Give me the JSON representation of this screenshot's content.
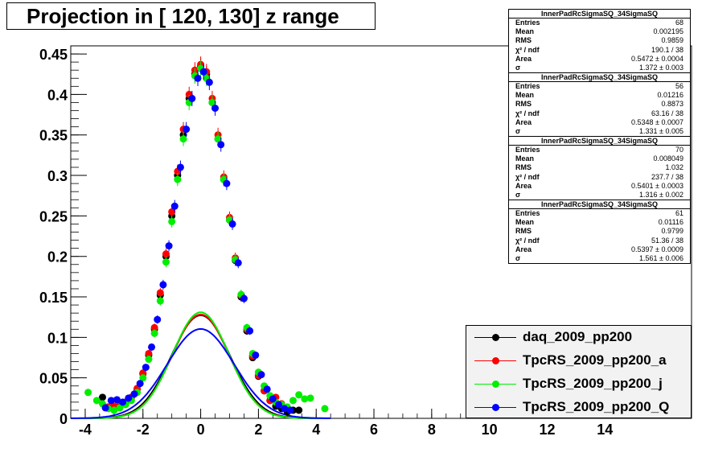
{
  "title": "Projection in [ 120, 130] z range",
  "stats": [
    {
      "name": "InnerPadRcSigmaSQ_34SigmaSQ",
      "rows": [
        {
          "k": "Entries",
          "v": "68"
        },
        {
          "k": "Mean",
          "v": "0.002195"
        },
        {
          "k": "RMS",
          "v": "0.9859"
        },
        {
          "k": "χ² / ndf",
          "v": "190.1 / 38"
        },
        {
          "k": "Area",
          "v": "0.5472 ± 0.0004"
        },
        {
          "k": "σ",
          "v": "1.372 ± 0.003"
        }
      ]
    },
    {
      "name": "InnerPadRcSigmaSQ_34SigmaSQ",
      "rows": [
        {
          "k": "Entries",
          "v": "56"
        },
        {
          "k": "Mean",
          "v": "0.01216"
        },
        {
          "k": "RMS",
          "v": "0.8873"
        },
        {
          "k": "χ² / ndf",
          "v": "63.16 / 38"
        },
        {
          "k": "Area",
          "v": "0.5348 ± 0.0007"
        },
        {
          "k": "σ",
          "v": "1.331 ± 0.005"
        }
      ]
    },
    {
      "name": "InnerPadRcSigmaSQ_34SigmaSQ",
      "rows": [
        {
          "k": "Entries",
          "v": "70"
        },
        {
          "k": "Mean",
          "v": "0.008049"
        },
        {
          "k": "RMS",
          "v": "1.032"
        },
        {
          "k": "χ² / ndf",
          "v": "237.7 / 38"
        },
        {
          "k": "Area",
          "v": "0.5401 ± 0.0003"
        },
        {
          "k": "σ",
          "v": "1.316 ± 0.002"
        }
      ]
    },
    {
      "name": "InnerPadRcSigmaSQ_34SigmaSQ",
      "rows": [
        {
          "k": "Entries",
          "v": "61"
        },
        {
          "k": "Mean",
          "v": "0.01116"
        },
        {
          "k": "RMS",
          "v": "0.9799"
        },
        {
          "k": "χ² / ndf",
          "v": "51.36 / 38"
        },
        {
          "k": "Area",
          "v": "0.5397 ± 0.0009"
        },
        {
          "k": "σ",
          "v": "1.561 ± 0.006"
        }
      ]
    }
  ],
  "legend": [
    {
      "label": "daq_2009_pp200",
      "color": "#000000"
    },
    {
      "label": "TpcRS_2009_pp200_a",
      "color": "#ff0000"
    },
    {
      "label": "TpcRS_2009_pp200_j",
      "color": "#00ee00"
    },
    {
      "label": "TpcRS_2009_pp200_Q",
      "color": "#0000ff"
    }
  ],
  "chart_data": {
    "type": "scatter",
    "title": "Projection in [ 120, 130] z range",
    "xlim": [
      -4.5,
      17
    ],
    "ylim": [
      0,
      0.46
    ],
    "x_ticks": [
      "-4",
      "-2",
      "0",
      "2",
      "4",
      "6",
      "8",
      "10",
      "12",
      "14"
    ],
    "y_ticks": [
      "0",
      "0.05",
      "0.1",
      "0.15",
      "0.2",
      "0.25",
      "0.3",
      "0.35",
      "0.4",
      "0.45"
    ],
    "grid": true,
    "legend_position": "bottom-right",
    "series": [
      {
        "name": "daq_2009_pp200",
        "color": "#000000",
        "x": [
          -3.4,
          -3.2,
          -3.0,
          -2.8,
          -2.6,
          -2.4,
          -2.2,
          -2.0,
          -1.8,
          -1.6,
          -1.4,
          -1.2,
          -1.0,
          -0.8,
          -0.6,
          -0.4,
          -0.2,
          0.0,
          0.2,
          0.4,
          0.6,
          0.8,
          1.0,
          1.2,
          1.4,
          1.6,
          1.8,
          2.0,
          2.2,
          2.4,
          2.6,
          2.8,
          3.0,
          3.2,
          3.4
        ],
        "y": [
          0.026,
          0.014,
          0.012,
          0.015,
          0.019,
          0.026,
          0.036,
          0.055,
          0.078,
          0.11,
          0.152,
          0.2,
          0.25,
          0.3,
          0.35,
          0.395,
          0.425,
          0.435,
          0.425,
          0.39,
          0.345,
          0.295,
          0.245,
          0.195,
          0.15,
          0.108,
          0.075,
          0.052,
          0.034,
          0.022,
          0.015,
          0.012,
          0.008,
          0.01,
          0.01
        ]
      },
      {
        "name": "TpcRS_2009_pp200_a",
        "color": "#ff0000",
        "x": [
          -3.2,
          -3.0,
          -2.8,
          -2.6,
          -2.4,
          -2.2,
          -2.0,
          -1.8,
          -1.6,
          -1.4,
          -1.2,
          -1.0,
          -0.8,
          -0.6,
          -0.4,
          -0.2,
          0.0,
          0.2,
          0.4,
          0.6,
          0.8,
          1.0,
          1.2,
          1.4,
          1.6,
          1.8,
          2.0,
          2.2,
          2.4,
          2.6,
          2.8
        ],
        "y": [
          0.014,
          0.015,
          0.017,
          0.02,
          0.026,
          0.037,
          0.056,
          0.08,
          0.112,
          0.155,
          0.203,
          0.255,
          0.305,
          0.357,
          0.4,
          0.43,
          0.437,
          0.428,
          0.395,
          0.35,
          0.298,
          0.248,
          0.198,
          0.152,
          0.11,
          0.077,
          0.053,
          0.034,
          0.022,
          0.026,
          0.018
        ]
      },
      {
        "name": "TpcRS_2009_pp200_j",
        "color": "#00ee00",
        "x": [
          -3.9,
          -3.6,
          -3.4,
          -3.2,
          -3.0,
          -2.8,
          -2.6,
          -2.4,
          -2.2,
          -2.0,
          -1.8,
          -1.6,
          -1.4,
          -1.2,
          -1.0,
          -0.8,
          -0.6,
          -0.4,
          -0.2,
          0.0,
          0.2,
          0.4,
          0.6,
          0.8,
          1.0,
          1.2,
          1.4,
          1.6,
          1.8,
          2.0,
          2.2,
          2.4,
          2.6,
          2.8,
          3.0,
          3.2,
          3.4,
          3.6,
          3.8,
          4.3
        ],
        "y": [
          0.032,
          0.022,
          0.018,
          0.012,
          0.01,
          0.013,
          0.017,
          0.022,
          0.032,
          0.05,
          0.073,
          0.105,
          0.145,
          0.193,
          0.243,
          0.295,
          0.345,
          0.39,
          0.423,
          0.432,
          0.42,
          0.39,
          0.345,
          0.295,
          0.245,
          0.196,
          0.153,
          0.112,
          0.08,
          0.057,
          0.04,
          0.028,
          0.02,
          0.017,
          0.014,
          0.022,
          0.029,
          0.024,
          0.025,
          0.012
        ]
      },
      {
        "name": "TpcRS_2009_pp200_Q",
        "color": "#0000ff",
        "x": [
          -3.3,
          -3.1,
          -2.9,
          -2.7,
          -2.5,
          -2.3,
          -2.1,
          -1.9,
          -1.7,
          -1.5,
          -1.3,
          -1.1,
          -0.9,
          -0.7,
          -0.5,
          -0.3,
          -0.1,
          0.1,
          0.3,
          0.5,
          0.7,
          0.9,
          1.1,
          1.3,
          1.5,
          1.7,
          1.9,
          2.1,
          2.3,
          2.5,
          2.7,
          2.9,
          3.1
        ],
        "y": [
          0.013,
          0.022,
          0.023,
          0.02,
          0.025,
          0.03,
          0.043,
          0.063,
          0.088,
          0.122,
          0.165,
          0.213,
          0.262,
          0.31,
          0.357,
          0.395,
          0.42,
          0.428,
          0.415,
          0.383,
          0.338,
          0.29,
          0.24,
          0.192,
          0.148,
          0.108,
          0.078,
          0.054,
          0.036,
          0.024,
          0.017,
          0.012,
          0.01
        ]
      }
    ],
    "fits": [
      {
        "name": "daq_2009_pp200",
        "color": "#000000",
        "area": 0.5472,
        "sigma": 1.372
      },
      {
        "name": "TpcRS_2009_pp200_a",
        "color": "#ff0000",
        "area": 0.5348,
        "sigma": 1.331
      },
      {
        "name": "TpcRS_2009_pp200_j",
        "color": "#00ee00",
        "area": 0.5401,
        "sigma": 1.316
      },
      {
        "name": "TpcRS_2009_pp200_Q",
        "color": "#0000ff",
        "area": 0.5397,
        "sigma": 1.561
      }
    ]
  }
}
